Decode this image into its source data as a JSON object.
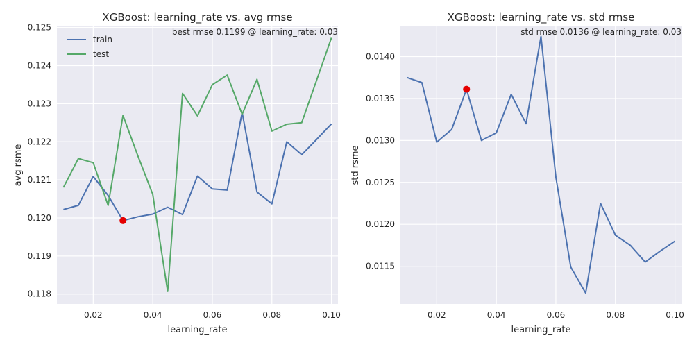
{
  "chart_data": [
    {
      "type": "line",
      "title": "XGBoost: learning_rate vs. avg rmse",
      "xlabel": "learning_rate",
      "ylabel": "avg rsme",
      "xlim": [
        0.0078,
        0.1022
      ],
      "ylim": [
        0.11774,
        0.12503
      ],
      "xticks": [
        0.02,
        0.04,
        0.06,
        0.08,
        0.1
      ],
      "xtick_labels": [
        "0.02",
        "0.04",
        "0.06",
        "0.08",
        "0.10"
      ],
      "yticks": [
        0.118,
        0.119,
        0.12,
        0.121,
        0.122,
        0.123,
        0.124,
        0.125
      ],
      "ytick_labels": [
        "0.118",
        "0.119",
        "0.120",
        "0.121",
        "0.122",
        "0.123",
        "0.124",
        "0.125"
      ],
      "grid": true,
      "legend": "top-left",
      "x": [
        0.01,
        0.015,
        0.02,
        0.025,
        0.03,
        0.035,
        0.04,
        0.045,
        0.05,
        0.055,
        0.06,
        0.065,
        0.07,
        0.075,
        0.08,
        0.085,
        0.09,
        0.095,
        0.1
      ],
      "series": [
        {
          "name": "train",
          "color": "#4c72b0",
          "values": [
            0.12022,
            0.12033,
            0.12109,
            0.12059,
            0.11993,
            0.12003,
            0.1201,
            0.12028,
            0.12009,
            0.1211,
            0.12076,
            0.12073,
            0.12277,
            0.12068,
            0.12037,
            0.122,
            0.12166,
            0.12206,
            0.12247
          ]
        },
        {
          "name": "test",
          "color": "#55a868",
          "values": [
            0.1208,
            0.12156,
            0.12145,
            0.12033,
            0.12269,
            0.12163,
            0.12062,
            0.11807,
            0.12327,
            0.12268,
            0.1235,
            0.12375,
            0.12272,
            0.12364,
            0.12228,
            0.12246,
            0.1225,
            0.12361,
            0.12473
          ]
        }
      ],
      "highlight": {
        "x": 0.03,
        "y": 0.11993,
        "color": "#e50000"
      },
      "annotation": "best rmse 0.1199 @ learning_rate: 0.03"
    },
    {
      "type": "line",
      "title": "XGBoost: learning_rate vs. std rmse",
      "xlabel": "learning_rate",
      "ylabel": "std rsme",
      "xlim": [
        0.0078,
        0.1022
      ],
      "ylim": [
        0.01105,
        0.01436
      ],
      "xticks": [
        0.02,
        0.04,
        0.06,
        0.08,
        0.1
      ],
      "xtick_labels": [
        "0.02",
        "0.04",
        "0.06",
        "0.08",
        "0.10"
      ],
      "yticks": [
        0.0115,
        0.012,
        0.0125,
        0.013,
        0.0135,
        0.014
      ],
      "ytick_labels": [
        "0.0115",
        "0.0120",
        "0.0125",
        "0.0130",
        "0.0135",
        "0.0140"
      ],
      "grid": true,
      "x": [
        0.01,
        0.015,
        0.02,
        0.025,
        0.03,
        0.035,
        0.04,
        0.045,
        0.05,
        0.055,
        0.06,
        0.065,
        0.07,
        0.075,
        0.08,
        0.085,
        0.09,
        0.095,
        0.1
      ],
      "series": [
        {
          "color": "#4c72b0",
          "values": [
            0.01375,
            0.01369,
            0.01298,
            0.01313,
            0.01361,
            0.013,
            0.01309,
            0.01355,
            0.0132,
            0.01424,
            0.01256,
            0.01149,
            0.01118,
            0.01225,
            0.01187,
            0.01175,
            0.01155,
            0.01168,
            0.0118
          ]
        }
      ],
      "highlight": {
        "x": 0.03,
        "y": 0.01361,
        "color": "#e50000"
      },
      "annotation": "std rmse 0.0136 @ learning_rate: 0.03"
    }
  ]
}
